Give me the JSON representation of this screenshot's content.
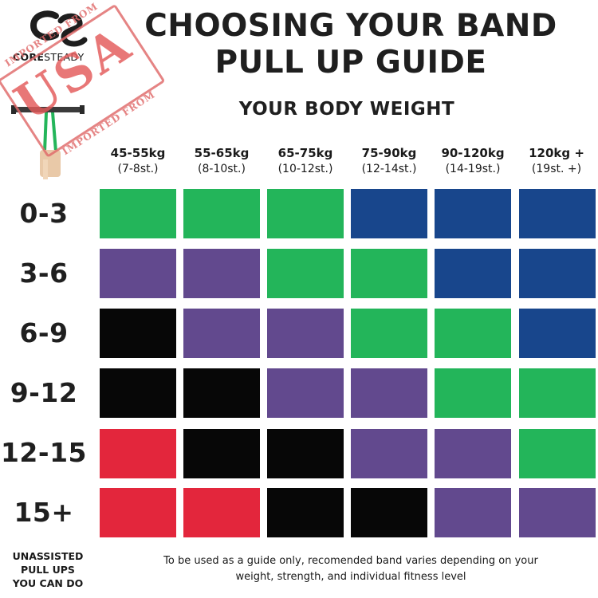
{
  "brand": {
    "name_bold": "CORE",
    "name_light": "STEADY",
    "logo_icon": "cs-monogram-icon"
  },
  "stamp": {
    "top": "IMPORTED FROM",
    "main": "USA",
    "bottom": "IMPORTED FROM",
    "color": "#e45a5a"
  },
  "title": {
    "line1": "CHOOSING YOUR BAND",
    "line2": "PULL UP GUIDE"
  },
  "subtitle": "YOUR BODY WEIGHT",
  "columns": [
    {
      "kg": "45-55kg",
      "st": "(7-8st.)"
    },
    {
      "kg": "55-65kg",
      "st": "(8-10st.)"
    },
    {
      "kg": "65-75kg",
      "st": "(10-12st.)"
    },
    {
      "kg": "75-90kg",
      "st": "(12-14st.)"
    },
    {
      "kg": "90-120kg",
      "st": "(14-19st.)"
    },
    {
      "kg": "120kg +",
      "st": "(19st. +)"
    }
  ],
  "colors": {
    "green": "#23b55a",
    "blue": "#18468c",
    "purple": "#62498e",
    "black": "#070707",
    "red": "#e3263c"
  },
  "rows": [
    {
      "label": "0-3",
      "bands": [
        "green",
        "green",
        "green",
        "blue",
        "blue",
        "blue"
      ]
    },
    {
      "label": "3-6",
      "bands": [
        "purple",
        "purple",
        "green",
        "green",
        "blue",
        "blue"
      ]
    },
    {
      "label": "6-9",
      "bands": [
        "black",
        "purple",
        "purple",
        "green",
        "green",
        "blue"
      ]
    },
    {
      "label": "9-12",
      "bands": [
        "black",
        "black",
        "purple",
        "purple",
        "green",
        "green"
      ]
    },
    {
      "label": "12-15",
      "bands": [
        "red",
        "black",
        "black",
        "purple",
        "purple",
        "green"
      ]
    },
    {
      "label": "15+",
      "bands": [
        "red",
        "red",
        "black",
        "black",
        "purple",
        "purple"
      ]
    }
  ],
  "row_axis_label": {
    "line1": "UNASSISTED",
    "line2": "PULL UPS",
    "line3": "YOU CAN DO"
  },
  "footnote": {
    "line1": "To be used as a guide only, recomended band varies depending on your",
    "line2": "weight, strength, and individual fitness level"
  }
}
